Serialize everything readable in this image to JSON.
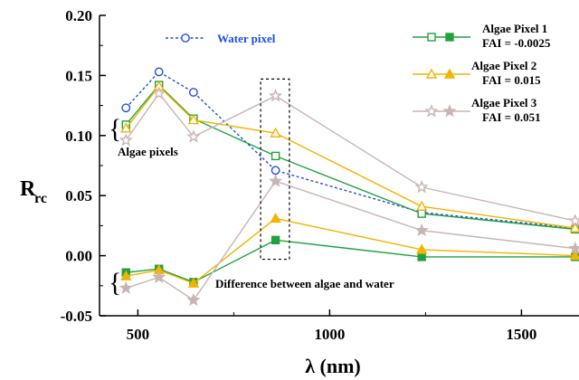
{
  "chart_data": {
    "type": "line",
    "xlabel": "λ (nm)",
    "ylabel": "R",
    "ylabel_sub": "rc",
    "xlim": [
      400,
      1650
    ],
    "ylim": [
      -0.05,
      0.2
    ],
    "xticks": [
      500,
      1000,
      1500
    ],
    "xtick_labels": [
      "500",
      "1000",
      "1500"
    ],
    "yticks": [
      -0.05,
      0.0,
      0.05,
      0.1,
      0.15,
      0.2
    ],
    "ytick_labels": [
      "-0.05",
      "0.00",
      "0.05",
      "0.10",
      "0.15",
      "0.20"
    ],
    "x": [
      469,
      555,
      645,
      859,
      1240,
      1640
    ],
    "series": [
      {
        "name": "Water pixel",
        "color": "#1f4fe0",
        "style": "dotted",
        "marker": "open-circle",
        "values": [
          0.123,
          0.153,
          0.136,
          0.071,
          0.036,
          0.023
        ]
      },
      {
        "name": "Algae Pixel 1",
        "color": "#22a040",
        "style": "solid",
        "marker": "open-square",
        "values": [
          0.109,
          0.142,
          0.114,
          0.083,
          0.035,
          0.022
        ]
      },
      {
        "name": "Algae Pixel 2",
        "color": "#f2b400",
        "style": "solid",
        "marker": "open-triangle",
        "values": [
          0.106,
          0.141,
          0.113,
          0.102,
          0.041,
          0.023
        ]
      },
      {
        "name": "Algae Pixel 3",
        "color": "#c9b4b4",
        "style": "solid",
        "marker": "open-star",
        "values": [
          0.096,
          0.135,
          0.099,
          0.133,
          0.057,
          0.029
        ]
      },
      {
        "name": "Algae Pixel 1 difference",
        "color": "#22a040",
        "style": "solid",
        "marker": "filled-square",
        "values": [
          -0.014,
          -0.011,
          -0.022,
          0.013,
          -0.001,
          -0.001
        ]
      },
      {
        "name": "Algae Pixel 2 difference",
        "color": "#f2b400",
        "style": "solid",
        "marker": "filled-triangle",
        "values": [
          -0.017,
          -0.012,
          -0.023,
          0.031,
          0.005,
          0.0
        ]
      },
      {
        "name": "Algae Pixel 3 difference",
        "color": "#c9b4b4",
        "style": "solid",
        "marker": "filled-star",
        "values": [
          -0.027,
          -0.018,
          -0.037,
          0.062,
          0.021,
          0.006
        ]
      }
    ],
    "legend": {
      "placement": "top-right",
      "entries": [
        {
          "label": "Algae Pixel 1",
          "fai": "FAI = -0.0025",
          "color": "#22a040",
          "markers": [
            "open-square",
            "filled-square"
          ]
        },
        {
          "label": "Algae Pixel 2",
          "fai": "FAI = 0.015",
          "color": "#f2b400",
          "markers": [
            "open-triangle",
            "filled-triangle"
          ]
        },
        {
          "label": "Algae Pixel 3",
          "fai": "FAI = 0.051",
          "color": "#c9b4b4",
          "markers": [
            "open-star",
            "filled-star"
          ]
        }
      ],
      "water_entry": {
        "label": "Water pixel",
        "color": "#1f4fe0",
        "marker": "open-circle"
      }
    },
    "annotations": {
      "algae_pixels": "Algae pixels",
      "difference": "Difference between algae and water"
    },
    "highlight_box": {
      "x_range": [
        820,
        895
      ],
      "y_range": [
        -0.003,
        0.147
      ]
    }
  }
}
